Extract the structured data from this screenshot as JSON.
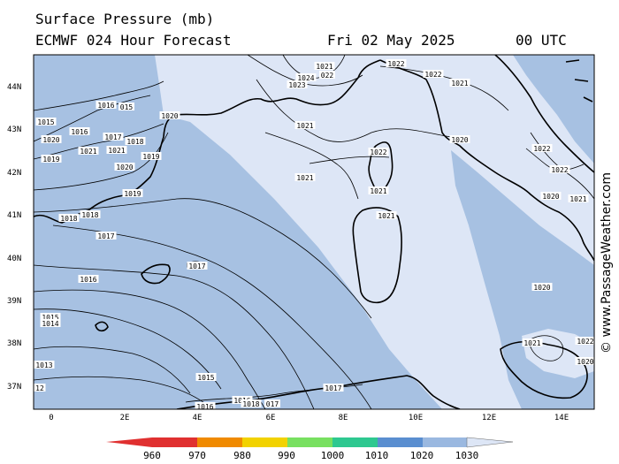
{
  "title": "Surface Pressure (mb)",
  "subtitle": "ECMWF 024 Hour Forecast",
  "date": "Fri 02 May 2025",
  "time": "00 UTC",
  "credit": "© www.PassageWeather.com",
  "lat_labels": [
    "44N",
    "43N",
    "42N",
    "41N",
    "40N",
    "39N",
    "38N",
    "37N"
  ],
  "lon_labels": [
    "0",
    "2E",
    "4E",
    "6E",
    "8E",
    "10E",
    "12E",
    "14E"
  ],
  "legend": {
    "ticks": [
      "960",
      "970",
      "980",
      "990",
      "1000",
      "1010",
      "1020",
      "1030"
    ],
    "colors": [
      "#e03030",
      "#f08a00",
      "#f2d200",
      "#78e060",
      "#2ec890",
      "#5a8ed0",
      "#9ab8e0",
      "#dde6f6"
    ]
  },
  "map_colors": {
    "band_1010_1020": "#a7c1e2",
    "band_1020_plus": "#dde6f6",
    "coast": "#000000",
    "isobar": "#000000"
  },
  "isobar_labels": [
    {
      "text": "1021"
    },
    {
      "text": "1022"
    },
    {
      "text": "1022"
    },
    {
      "text": "1024"
    },
    {
      "text": "022"
    },
    {
      "text": "1023"
    },
    {
      "text": "1021"
    },
    {
      "text": "1016"
    },
    {
      "text": "015"
    },
    {
      "text": "1020"
    },
    {
      "text": "1015"
    },
    {
      "text": "1016"
    },
    {
      "text": "1020"
    },
    {
      "text": "1017"
    },
    {
      "text": "1018"
    },
    {
      "text": "1021"
    },
    {
      "text": "1021"
    },
    {
      "text": "1019"
    },
    {
      "text": "1019"
    },
    {
      "text": "1020"
    },
    {
      "text": "1021"
    },
    {
      "text": "1022"
    },
    {
      "text": "1020"
    },
    {
      "text": "1021"
    },
    {
      "text": "1022"
    },
    {
      "text": "1022"
    },
    {
      "text": "1019"
    },
    {
      "text": "1021"
    },
    {
      "text": "1020"
    },
    {
      "text": "1021"
    },
    {
      "text": "1021"
    },
    {
      "text": "1018"
    },
    {
      "text": "1018"
    },
    {
      "text": "1017"
    },
    {
      "text": "1017"
    },
    {
      "text": "1016"
    },
    {
      "text": "1020"
    },
    {
      "text": "1015"
    },
    {
      "text": "1014"
    },
    {
      "text": "1021"
    },
    {
      "text": "1022"
    },
    {
      "text": "1020"
    },
    {
      "text": "1013"
    },
    {
      "text": "12"
    },
    {
      "text": "1015"
    },
    {
      "text": "1017"
    },
    {
      "text": "1016"
    },
    {
      "text": "1016"
    },
    {
      "text": "017"
    },
    {
      "text": "1018"
    }
  ]
}
